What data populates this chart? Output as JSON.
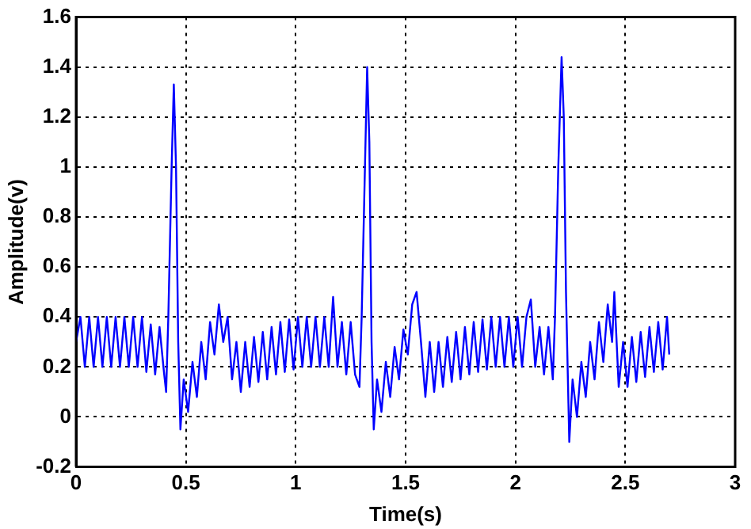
{
  "chart_data": {
    "type": "line",
    "xlabel": "Time(s)",
    "ylabel": "Amplitude(v)",
    "xlim": [
      0,
      3
    ],
    "xticks": [
      0,
      0.5,
      1,
      1.5,
      2,
      2.5,
      3
    ],
    "ylim": [
      -0.2,
      1.6
    ],
    "yticks": [
      -0.2,
      0,
      0.2,
      0.4,
      0.6,
      0.8,
      1,
      1.2,
      1.4,
      1.6
    ],
    "grid": true,
    "marker": "none",
    "series": [
      {
        "color": "#0000ff",
        "x": [
          0,
          0.02,
          0.04,
          0.06,
          0.08,
          0.1,
          0.12,
          0.14,
          0.16,
          0.18,
          0.2,
          0.22,
          0.24,
          0.26,
          0.28,
          0.3,
          0.32,
          0.34,
          0.36,
          0.38,
          0.4,
          0.41,
          0.42,
          0.435,
          0.445,
          0.455,
          0.465,
          0.475,
          0.49,
          0.51,
          0.53,
          0.55,
          0.57,
          0.59,
          0.61,
          0.63,
          0.65,
          0.67,
          0.69,
          0.71,
          0.73,
          0.75,
          0.77,
          0.79,
          0.81,
          0.83,
          0.85,
          0.87,
          0.89,
          0.91,
          0.93,
          0.95,
          0.97,
          0.99,
          1.01,
          1.03,
          1.05,
          1.07,
          1.09,
          1.11,
          1.13,
          1.15,
          1.17,
          1.19,
          1.21,
          1.23,
          1.25,
          1.27,
          1.29,
          1.3,
          1.315,
          1.325,
          1.335,
          1.345,
          1.355,
          1.37,
          1.39,
          1.41,
          1.43,
          1.45,
          1.47,
          1.49,
          1.51,
          1.53,
          1.55,
          1.57,
          1.59,
          1.61,
          1.63,
          1.65,
          1.67,
          1.69,
          1.71,
          1.73,
          1.75,
          1.77,
          1.79,
          1.81,
          1.83,
          1.85,
          1.87,
          1.89,
          1.91,
          1.93,
          1.95,
          1.97,
          1.99,
          2.01,
          2.03,
          2.05,
          2.07,
          2.09,
          2.11,
          2.13,
          2.15,
          2.17,
          2.18,
          2.195,
          2.21,
          2.22,
          2.23,
          2.245,
          2.26,
          2.28,
          2.3,
          2.32,
          2.34,
          2.36,
          2.38,
          2.4,
          2.42,
          2.44,
          2.45,
          2.47,
          2.49,
          2.51,
          2.53,
          2.55,
          2.57,
          2.59,
          2.61,
          2.63,
          2.65,
          2.67,
          2.69,
          2.7
        ],
        "values": [
          0.3,
          0.4,
          0.2,
          0.4,
          0.2,
          0.4,
          0.2,
          0.4,
          0.2,
          0.4,
          0.2,
          0.4,
          0.2,
          0.4,
          0.2,
          0.4,
          0.18,
          0.37,
          0.17,
          0.36,
          0.18,
          0.1,
          0.4,
          1.0,
          1.33,
          1.0,
          0.3,
          -0.05,
          0.15,
          0.02,
          0.22,
          0.08,
          0.3,
          0.15,
          0.38,
          0.25,
          0.45,
          0.3,
          0.4,
          0.15,
          0.3,
          0.1,
          0.3,
          0.12,
          0.32,
          0.14,
          0.34,
          0.15,
          0.36,
          0.17,
          0.38,
          0.18,
          0.39,
          0.19,
          0.4,
          0.2,
          0.4,
          0.2,
          0.4,
          0.2,
          0.4,
          0.2,
          0.48,
          0.2,
          0.38,
          0.17,
          0.38,
          0.17,
          0.12,
          0.4,
          1.0,
          1.4,
          1.1,
          0.3,
          -0.05,
          0.15,
          0.02,
          0.22,
          0.08,
          0.28,
          0.15,
          0.35,
          0.25,
          0.45,
          0.5,
          0.3,
          0.08,
          0.3,
          0.1,
          0.3,
          0.12,
          0.32,
          0.14,
          0.34,
          0.15,
          0.36,
          0.17,
          0.38,
          0.18,
          0.39,
          0.19,
          0.4,
          0.2,
          0.4,
          0.2,
          0.4,
          0.2,
          0.4,
          0.2,
          0.4,
          0.47,
          0.2,
          0.36,
          0.17,
          0.36,
          0.15,
          0.4,
          1.0,
          1.44,
          1.2,
          0.5,
          -0.1,
          0.15,
          0.0,
          0.22,
          0.08,
          0.3,
          0.15,
          0.38,
          0.22,
          0.45,
          0.3,
          0.5,
          0.12,
          0.3,
          0.12,
          0.32,
          0.14,
          0.34,
          0.16,
          0.36,
          0.18,
          0.38,
          0.19,
          0.4,
          0.25
        ]
      }
    ]
  }
}
